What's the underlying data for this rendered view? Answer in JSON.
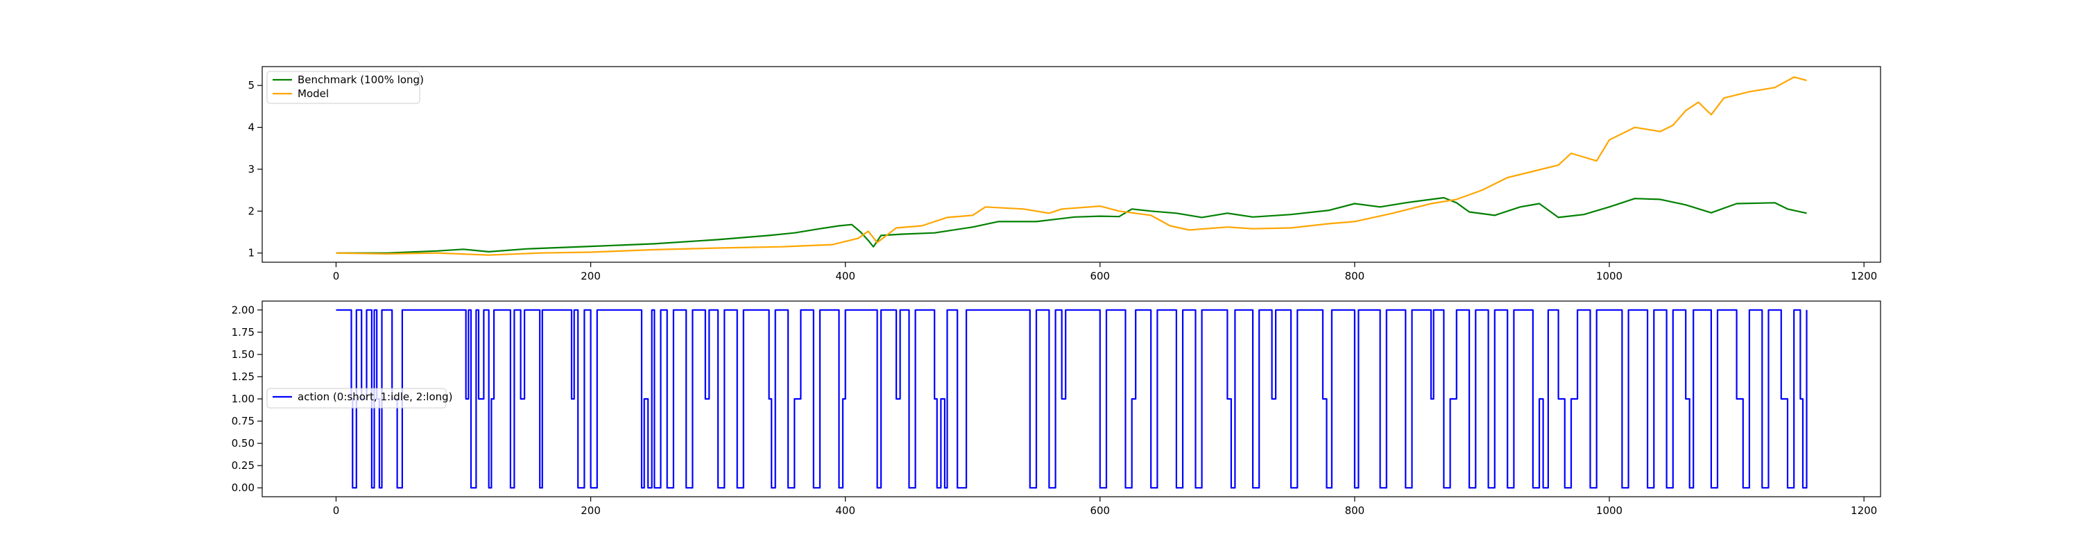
{
  "chart_data": [
    {
      "type": "line",
      "title": "",
      "xlabel": "",
      "ylabel": "",
      "xlim": [
        -58,
        1213
      ],
      "ylim": [
        0.78,
        5.45
      ],
      "xticks": [
        0,
        200,
        400,
        600,
        800,
        1000,
        1200
      ],
      "yticks": [
        1,
        2,
        3,
        4,
        5
      ],
      "xtick_labels": [
        "0",
        "200",
        "400",
        "600",
        "800",
        "1000",
        "1200"
      ],
      "ytick_labels": [
        "1",
        "2",
        "3",
        "4",
        "5"
      ],
      "grid": false,
      "legend": "upper left",
      "series": [
        {
          "name": "Benchmark (100% long)",
          "color": "#008000",
          "points": [
            [
              0,
              1.0
            ],
            [
              40,
              1.0
            ],
            [
              80,
              1.05
            ],
            [
              100,
              1.09
            ],
            [
              120,
              1.03
            ],
            [
              150,
              1.1
            ],
            [
              200,
              1.16
            ],
            [
              250,
              1.22
            ],
            [
              300,
              1.32
            ],
            [
              340,
              1.42
            ],
            [
              360,
              1.48
            ],
            [
              380,
              1.58
            ],
            [
              395,
              1.65
            ],
            [
              405,
              1.68
            ],
            [
              412,
              1.5
            ],
            [
              418,
              1.3
            ],
            [
              422,
              1.15
            ],
            [
              428,
              1.42
            ],
            [
              445,
              1.45
            ],
            [
              470,
              1.48
            ],
            [
              500,
              1.62
            ],
            [
              520,
              1.75
            ],
            [
              550,
              1.75
            ],
            [
              580,
              1.86
            ],
            [
              600,
              1.88
            ],
            [
              615,
              1.87
            ],
            [
              625,
              2.05
            ],
            [
              640,
              2.0
            ],
            [
              660,
              1.95
            ],
            [
              680,
              1.85
            ],
            [
              700,
              1.95
            ],
            [
              720,
              1.86
            ],
            [
              750,
              1.92
            ],
            [
              780,
              2.02
            ],
            [
              800,
              2.18
            ],
            [
              820,
              2.1
            ],
            [
              840,
              2.2
            ],
            [
              870,
              2.32
            ],
            [
              880,
              2.2
            ],
            [
              890,
              1.98
            ],
            [
              910,
              1.9
            ],
            [
              930,
              2.1
            ],
            [
              945,
              2.18
            ],
            [
              960,
              1.85
            ],
            [
              980,
              1.92
            ],
            [
              1000,
              2.1
            ],
            [
              1020,
              2.3
            ],
            [
              1040,
              2.28
            ],
            [
              1060,
              2.15
            ],
            [
              1080,
              1.96
            ],
            [
              1100,
              2.18
            ],
            [
              1130,
              2.2
            ],
            [
              1140,
              2.05
            ],
            [
              1155,
              1.95
            ]
          ]
        },
        {
          "name": "Model",
          "color": "#FFA500",
          "points": [
            [
              0,
              1.0
            ],
            [
              40,
              0.98
            ],
            [
              80,
              1.0
            ],
            [
              120,
              0.95
            ],
            [
              160,
              1.0
            ],
            [
              200,
              1.02
            ],
            [
              250,
              1.08
            ],
            [
              300,
              1.12
            ],
            [
              350,
              1.15
            ],
            [
              390,
              1.2
            ],
            [
              410,
              1.35
            ],
            [
              418,
              1.52
            ],
            [
              425,
              1.25
            ],
            [
              440,
              1.6
            ],
            [
              460,
              1.65
            ],
            [
              480,
              1.85
            ],
            [
              500,
              1.9
            ],
            [
              510,
              2.1
            ],
            [
              540,
              2.05
            ],
            [
              560,
              1.95
            ],
            [
              570,
              2.05
            ],
            [
              600,
              2.12
            ],
            [
              615,
              2.0
            ],
            [
              640,
              1.9
            ],
            [
              655,
              1.65
            ],
            [
              670,
              1.55
            ],
            [
              700,
              1.62
            ],
            [
              720,
              1.58
            ],
            [
              750,
              1.6
            ],
            [
              780,
              1.7
            ],
            [
              800,
              1.75
            ],
            [
              830,
              1.95
            ],
            [
              860,
              2.18
            ],
            [
              880,
              2.28
            ],
            [
              900,
              2.5
            ],
            [
              920,
              2.8
            ],
            [
              940,
              2.95
            ],
            [
              960,
              3.1
            ],
            [
              970,
              3.38
            ],
            [
              990,
              3.2
            ],
            [
              1000,
              3.7
            ],
            [
              1020,
              4.0
            ],
            [
              1040,
              3.9
            ],
            [
              1050,
              4.05
            ],
            [
              1060,
              4.4
            ],
            [
              1070,
              4.6
            ],
            [
              1080,
              4.3
            ],
            [
              1090,
              4.7
            ],
            [
              1110,
              4.85
            ],
            [
              1130,
              4.95
            ],
            [
              1145,
              5.2
            ],
            [
              1155,
              5.12
            ]
          ]
        }
      ]
    },
    {
      "type": "line",
      "title": "",
      "xlabel": "",
      "ylabel": "",
      "xlim": [
        -58,
        1213
      ],
      "ylim": [
        -0.1,
        2.1
      ],
      "xticks": [
        0,
        200,
        400,
        600,
        800,
        1000,
        1200
      ],
      "yticks": [
        0.0,
        0.25,
        0.5,
        0.75,
        1.0,
        1.25,
        1.5,
        1.75,
        2.0
      ],
      "xtick_labels": [
        "0",
        "200",
        "400",
        "600",
        "800",
        "1000",
        "1200"
      ],
      "ytick_labels": [
        "0.00",
        "0.25",
        "0.50",
        "0.75",
        "1.00",
        "1.25",
        "1.50",
        "1.75",
        "2.00"
      ],
      "grid": false,
      "legend": "center left",
      "series": [
        {
          "name": "action (0:short, 1:idle, 2:long)",
          "color": "#0000FF",
          "step": true,
          "points": [
            [
              0,
              2
            ],
            [
              10,
              2
            ],
            [
              12,
              1
            ],
            [
              13,
              0
            ],
            [
              16,
              2
            ],
            [
              20,
              1
            ],
            [
              24,
              2
            ],
            [
              28,
              0
            ],
            [
              30,
              2
            ],
            [
              32,
              1
            ],
            [
              34,
              0
            ],
            [
              36,
              2
            ],
            [
              40,
              2
            ],
            [
              44,
              1
            ],
            [
              48,
              0
            ],
            [
              52,
              2
            ],
            [
              100,
              2
            ],
            [
              102,
              1
            ],
            [
              104,
              2
            ],
            [
              106,
              0
            ],
            [
              110,
              2
            ],
            [
              112,
              1
            ],
            [
              116,
              2
            ],
            [
              120,
              0
            ],
            [
              122,
              1
            ],
            [
              124,
              2
            ],
            [
              135,
              2
            ],
            [
              137,
              0
            ],
            [
              140,
              2
            ],
            [
              145,
              1
            ],
            [
              148,
              2
            ],
            [
              160,
              0
            ],
            [
              162,
              2
            ],
            [
              185,
              1
            ],
            [
              187,
              2
            ],
            [
              190,
              0
            ],
            [
              195,
              2
            ],
            [
              200,
              0
            ],
            [
              205,
              2
            ],
            [
              240,
              0
            ],
            [
              242,
              1
            ],
            [
              245,
              0
            ],
            [
              248,
              2
            ],
            [
              250,
              0
            ],
            [
              255,
              2
            ],
            [
              260,
              0
            ],
            [
              265,
              2
            ],
            [
              275,
              0
            ],
            [
              280,
              2
            ],
            [
              290,
              1
            ],
            [
              293,
              2
            ],
            [
              300,
              0
            ],
            [
              305,
              2
            ],
            [
              315,
              0
            ],
            [
              320,
              2
            ],
            [
              340,
              1
            ],
            [
              342,
              0
            ],
            [
              345,
              2
            ],
            [
              355,
              0
            ],
            [
              360,
              1
            ],
            [
              365,
              2
            ],
            [
              375,
              0
            ],
            [
              380,
              2
            ],
            [
              395,
              0
            ],
            [
              398,
              1
            ],
            [
              400,
              2
            ],
            [
              425,
              0
            ],
            [
              428,
              2
            ],
            [
              440,
              1
            ],
            [
              443,
              2
            ],
            [
              450,
              0
            ],
            [
              455,
              2
            ],
            [
              470,
              1
            ],
            [
              472,
              0
            ],
            [
              475,
              1
            ],
            [
              478,
              0
            ],
            [
              480,
              2
            ],
            [
              488,
              0
            ],
            [
              495,
              2
            ],
            [
              545,
              0
            ],
            [
              550,
              2
            ],
            [
              560,
              0
            ],
            [
              565,
              2
            ],
            [
              570,
              1
            ],
            [
              573,
              2
            ],
            [
              600,
              0
            ],
            [
              605,
              2
            ],
            [
              620,
              0
            ],
            [
              625,
              1
            ],
            [
              628,
              2
            ],
            [
              640,
              0
            ],
            [
              645,
              2
            ],
            [
              660,
              0
            ],
            [
              665,
              2
            ],
            [
              675,
              0
            ],
            [
              680,
              2
            ],
            [
              700,
              1
            ],
            [
              703,
              0
            ],
            [
              706,
              2
            ],
            [
              720,
              0
            ],
            [
              725,
              2
            ],
            [
              735,
              1
            ],
            [
              738,
              2
            ],
            [
              750,
              0
            ],
            [
              755,
              2
            ],
            [
              775,
              1
            ],
            [
              778,
              0
            ],
            [
              782,
              2
            ],
            [
              800,
              0
            ],
            [
              803,
              2
            ],
            [
              820,
              0
            ],
            [
              825,
              2
            ],
            [
              840,
              0
            ],
            [
              845,
              2
            ],
            [
              860,
              1
            ],
            [
              862,
              2
            ],
            [
              870,
              0
            ],
            [
              875,
              1
            ],
            [
              880,
              2
            ],
            [
              890,
              0
            ],
            [
              895,
              2
            ],
            [
              905,
              0
            ],
            [
              910,
              2
            ],
            [
              920,
              0
            ],
            [
              925,
              2
            ],
            [
              940,
              0
            ],
            [
              945,
              1
            ],
            [
              948,
              0
            ],
            [
              952,
              2
            ],
            [
              960,
              1
            ],
            [
              965,
              0
            ],
            [
              970,
              1
            ],
            [
              975,
              2
            ],
            [
              985,
              0
            ],
            [
              990,
              2
            ],
            [
              1010,
              0
            ],
            [
              1015,
              2
            ],
            [
              1030,
              0
            ],
            [
              1035,
              2
            ],
            [
              1045,
              0
            ],
            [
              1050,
              2
            ],
            [
              1060,
              1
            ],
            [
              1063,
              0
            ],
            [
              1066,
              2
            ],
            [
              1080,
              0
            ],
            [
              1085,
              2
            ],
            [
              1100,
              1
            ],
            [
              1105,
              0
            ],
            [
              1110,
              2
            ],
            [
              1120,
              0
            ],
            [
              1125,
              2
            ],
            [
              1135,
              1
            ],
            [
              1140,
              0
            ],
            [
              1145,
              2
            ],
            [
              1150,
              1
            ],
            [
              1152,
              0
            ],
            [
              1155,
              2
            ]
          ]
        }
      ]
    }
  ]
}
